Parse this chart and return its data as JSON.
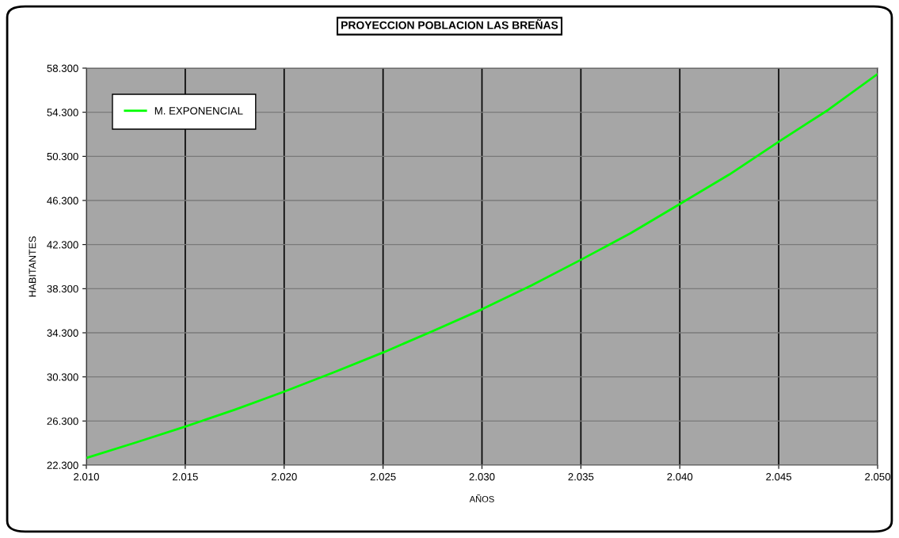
{
  "chart_data": {
    "type": "line",
    "title": "PROYECCION POBLACION LAS BREÑAS",
    "xlabel": "AÑOS",
    "ylabel": "HABITANTES",
    "x": [
      2010,
      2012.5,
      2015,
      2017.5,
      2020,
      2022.5,
      2025,
      2027.5,
      2030,
      2032.5,
      2035,
      2037.5,
      2040,
      2042.5,
      2045,
      2047.5,
      2050
    ],
    "series": [
      {
        "name": "M. EXPONENCIAL",
        "color": "#00ff00",
        "values": [
          22950,
          24350,
          25790,
          27320,
          28960,
          30710,
          32510,
          34450,
          36430,
          38590,
          40920,
          43320,
          45980,
          48650,
          51630,
          54510,
          57770
        ]
      }
    ],
    "xlim": [
      2010,
      2050
    ],
    "xticks": [
      {
        "value": 2010,
        "label": "2.010"
      },
      {
        "value": 2015,
        "label": "2.015"
      },
      {
        "value": 2020,
        "label": "2.020"
      },
      {
        "value": 2025,
        "label": "2.025"
      },
      {
        "value": 2030,
        "label": "2.030"
      },
      {
        "value": 2035,
        "label": "2.035"
      },
      {
        "value": 2040,
        "label": "2.040"
      },
      {
        "value": 2045,
        "label": "2.045"
      },
      {
        "value": 2050,
        "label": "2.050"
      }
    ],
    "ylim": [
      22300,
      58300
    ],
    "yticks": [
      {
        "value": 22300,
        "label": "22.300"
      },
      {
        "value": 26300,
        "label": "26.300"
      },
      {
        "value": 30300,
        "label": "30.300"
      },
      {
        "value": 34300,
        "label": "34.300"
      },
      {
        "value": 38300,
        "label": "38.300"
      },
      {
        "value": 42300,
        "label": "42.300"
      },
      {
        "value": 46300,
        "label": "46.300"
      },
      {
        "value": 50300,
        "label": "50.300"
      },
      {
        "value": 54300,
        "label": "54.300"
      },
      {
        "value": 58300,
        "label": "58.300"
      }
    ],
    "grid": true,
    "legend": "top left",
    "marker": "none",
    "line_style": "solid"
  }
}
